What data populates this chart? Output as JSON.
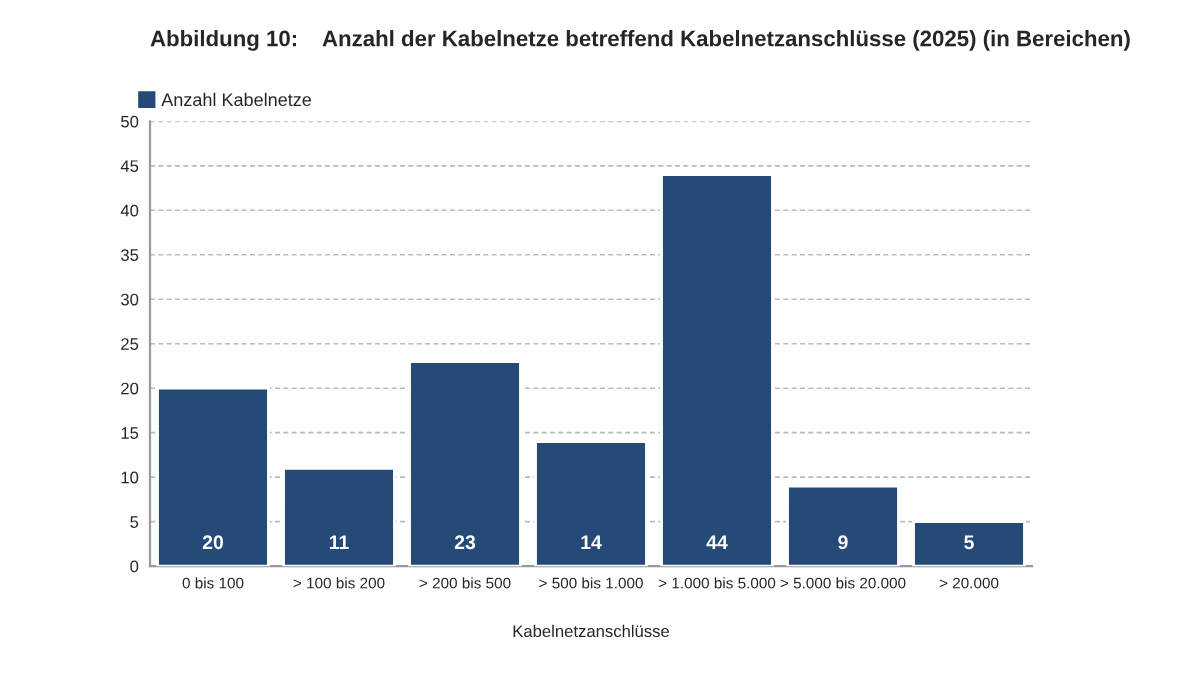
{
  "chart_data": {
    "type": "bar",
    "title": "Abbildung 10:    Anzahl der Kabelnetze betreffend Kabelnetzanschlüsse (2025) (in Bereichen)",
    "xlabel": "Kabelnetzanschlüsse",
    "categories": [
      "0 bis 100",
      "> 100 bis 200",
      "> 200 bis 500",
      "> 500 bis 1.000",
      "> 1.000 bis 5.000",
      "> 5.000 bis 20.000",
      "> 20.000"
    ],
    "series": [
      {
        "name": "Anzahl Kabelnetze",
        "color": "#264a78",
        "values": [
          20,
          11,
          23,
          14,
          44,
          9,
          5
        ]
      }
    ],
    "ylim": [
      0,
      50
    ],
    "yticks": [
      0,
      5,
      10,
      15,
      20,
      25,
      30,
      35,
      40,
      45,
      50
    ],
    "grid": "y",
    "legend": "top left",
    "data_labels": true
  }
}
